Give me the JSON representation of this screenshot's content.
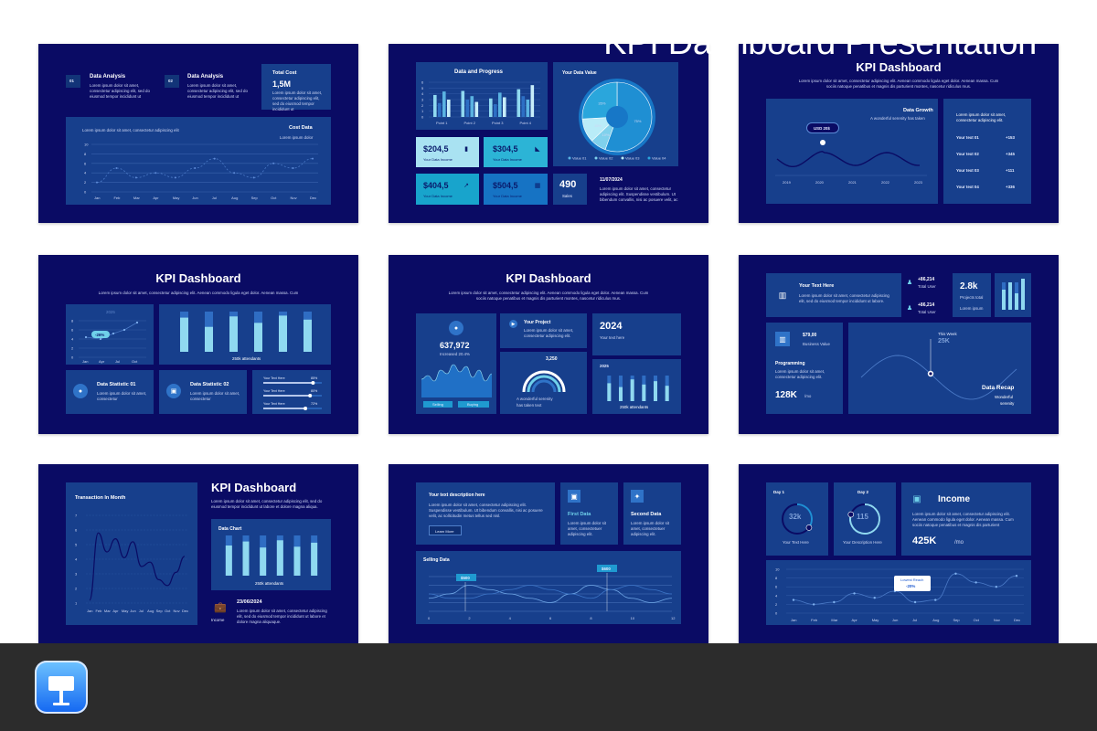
{
  "footer": {
    "title": "KPI Dashboard Presentation",
    "app_icon": "keynote-icon"
  },
  "lorem": {
    "short": "Lorem ipsum dolor sit amet, consectetur adipiscing elit, sed do eiusmod tempor incididunt ut",
    "line": "Lorem ipsum dolor sit amet, consectetur adipiscing elit. Aenean commodo ligula eget dolor. Aenean massa. Cum",
    "line2": "sociis natoque penatibus et magnis dis parturient montes, nascetur ridiculus mus.",
    "tiny": "Lorem ipsum dolor sit amet, consectetur adipiscing elit"
  },
  "slides": {
    "s1": {
      "item1_num": "01",
      "item1_title": "Data Analysis",
      "item2_num": "02",
      "item2_title": "Data Analysis",
      "total_label": "Total Cost",
      "total_value": "1,5M",
      "chart_title": "Cost Data",
      "chart_sub": "Lorem ipsum dolor",
      "chart_desc": "Lorem ipsum dolor sit amet, consectetur adipiscing elit",
      "yticks": [
        "10",
        "8",
        "6",
        "4",
        "2",
        "0"
      ],
      "months": [
        "Jan",
        "Feb",
        "Mar",
        "Apr",
        "May",
        "Jun",
        "Jul",
        "Aug",
        "Sep",
        "Oct",
        "Nov",
        "Dec"
      ]
    },
    "s2": {
      "chart_title": "Data and Progress",
      "yticks": [
        "6",
        "5",
        "4",
        "3",
        "2",
        "1",
        "0"
      ],
      "points": [
        "Point 1",
        "Point 2",
        "Point 3",
        "Point 4"
      ],
      "pie_title": "Your Data Value",
      "pie_labels": [
        "75%",
        "10%",
        "15%",
        "35%"
      ],
      "pie_legend": [
        "Value 01",
        "Value 02",
        "Value 03",
        "Value 04"
      ],
      "tiles": [
        {
          "value": "$204,5",
          "label": "Your Data Income"
        },
        {
          "value": "$304,5",
          "label": "Your Data Income"
        },
        {
          "value": "$404,5",
          "label": "Your Data Income"
        },
        {
          "value": "$504,5",
          "label": "Your Data Income"
        }
      ],
      "sales_value": "490",
      "sales_label": "Sales",
      "date": "11/07/2024",
      "date_text": "Lorem ipsum dolor sit amet, consectetur adipiscing elit. Suspendisse vestibulum. Ut bibendum convallis, nisi ac posuere velit, ac"
    },
    "s3": {
      "title": "KPI Dashboard",
      "usd": "USD 20$",
      "growth_title": "Data Growth",
      "growth_sub": "A wonderful serenity has taken",
      "years": [
        "2019",
        "2020",
        "2021",
        "2022",
        "2023"
      ],
      "right_text": "Lorem ipsum dolor sit amet, consectetur adipiscing elit.",
      "rows": [
        {
          "label": "Your text 01",
          "value": "+153"
        },
        {
          "label": "Your text 02",
          "value": "+345"
        },
        {
          "label": "Your text 03",
          "value": "+111"
        },
        {
          "label": "Your text 04",
          "value": "+336"
        }
      ]
    },
    "s4": {
      "title": "KPI Dashboard",
      "year": "2025",
      "badge": "-26%",
      "yticks": [
        "8",
        "6",
        "4",
        "2",
        "0"
      ],
      "months": [
        "Jan",
        "Apr",
        "Jul",
        "Oct"
      ],
      "bar_caption": "250k attendants",
      "stat1_title": "Data Statistic 01",
      "stat1_text": "Lorem ipsum dolor sit amet, consectetur",
      "stat2_title": "Data Statistic 02",
      "stat2_text": "Lorem ipsum dolor sit amet, consectetur",
      "sliders": [
        {
          "label": "Your Text Here",
          "value": "85%"
        },
        {
          "label": "Your Text Here",
          "value": "80%"
        },
        {
          "label": "Your Text Here",
          "value": "72%"
        }
      ]
    },
    "s5": {
      "title": "KPI Dashboard",
      "value": "637,972",
      "increased": "Increased 20.4%",
      "btn1": "Selling",
      "btn2": "Buying",
      "project_title": "Your Project",
      "project_text": "Lorem ipsum dolor sit amet, consectetur adipiscing elit.",
      "year": "2024",
      "year_text": "Your text here",
      "gauge_value": "3,250",
      "gauge_text1": "A wonderful serenity",
      "gauge_text2": "has taken text",
      "bar_year": "2025",
      "bar_caption": "250k attendants"
    },
    "s6": {
      "text_title": "Your Text Here",
      "text_body": "Lorem ipsum dolor sit amet, consectetur adipiscing elit, sed do eiusmod tempor incididunt ut labore.",
      "stat1_value": "+86,214",
      "stat1_label": "Total User",
      "stat2_value": "+86,214",
      "stat2_label": "Total User",
      "projects_value": "2.8k",
      "projects_label": "Projects total",
      "lorem_ipsum": "Lorem ipsum",
      "price": "$79,00",
      "price_label": "Business Value",
      "prog_title": "Programming",
      "prog_text": "Lorem ipsum dolor sit amet, consectetur adipiscing elit.",
      "prog_value": "128K",
      "prog_unit": "/mo",
      "week_label": "This Week",
      "week_value": "25K",
      "recap_title": "Data Recap",
      "recap_sub1": "Wonderful",
      "recap_sub2": "serenity"
    },
    "s7": {
      "chart_title": "Transaction In Month",
      "yticks": [
        "7",
        "6",
        "5",
        "4",
        "3",
        "2",
        "1"
      ],
      "months": [
        "Jan",
        "Feb",
        "Mar",
        "Apr",
        "May",
        "Jun",
        "Jul",
        "Aug",
        "Sep",
        "Oct",
        "Nov",
        "Dec"
      ],
      "title": "KPI Dashboard",
      "intro": "Lorem ipsum dolor sit amet, consectetur adipiscing elit, sed do eiusmod tempor incididunt ut labore et dolore magna aliqua.",
      "bar_title": "Data Chart",
      "bar_caption": "250k attendants",
      "date": "23/06/2024",
      "income_label": "Income",
      "date_text": "Lorem ipsum dolor sit amet, consectetur adipiscing elit, sed do eiusmod tempor incididunt ut labore et dolore magna aliquaque."
    },
    "s8": {
      "desc_title": "Your text description here",
      "desc_text": "Lorem ipsum dolor sit amet, consectetur adipiscing elit. Suspendisse vestibulum. Ut bibendum convallis, nisi ac posuere velit, ac sollicitudin metus tellus sed nisl.",
      "learn_more": "Learn More",
      "first_title": "First Data",
      "first_text": "Lorem ipsum dolor sit amet, consectetuer adipiscing elit.",
      "second_title": "Second Data",
      "second_text": "Lorem ipsum dolor sit amet, consectetuer adipiscing elit.",
      "chart_title": "Selling Data",
      "tag1": "$500",
      "tag2": "$600",
      "xticks": [
        "0",
        "2",
        "4",
        "6",
        "8",
        "10",
        "12"
      ]
    },
    "s9": {
      "day1_label": "Day 1",
      "day1_value": "32k",
      "day1_text": "Your Text Here",
      "day2_label": "Day 2",
      "day2_value": "115",
      "day2_text": "Your Description Here",
      "income_title": "Income",
      "income_text": "Lorem ipsum dolor sit amet, consectetur adipiscing elit. Aenean commodo ligula eget dolor. Aenean massa. Cum sociis natoque penatibus et magnis dis parturient",
      "income_value": "425K",
      "income_unit": "/mo",
      "yticks": [
        "10",
        "8",
        "6",
        "4",
        "2",
        "0"
      ],
      "months": [
        "Jan",
        "Feb",
        "Mar",
        "Apr",
        "May",
        "Jun",
        "Jul",
        "Aug",
        "Sep",
        "Oct",
        "Nov",
        "Dec"
      ],
      "callout_title": "Lowest Reach",
      "callout_value": "-20%"
    }
  },
  "chart_data": [
    {
      "type": "line",
      "title": "Cost Data",
      "categories": [
        "Jan",
        "Feb",
        "Mar",
        "Apr",
        "May",
        "Jun",
        "Jul",
        "Aug",
        "Sep",
        "Oct",
        "Nov",
        "Dec"
      ],
      "series": [
        {
          "values": [
            2,
            5,
            3,
            4,
            3,
            5,
            7,
            4,
            3,
            6,
            5,
            7
          ]
        }
      ],
      "ylim": [
        0,
        10
      ]
    },
    {
      "type": "bar",
      "title": "Data and Progress",
      "categories": [
        "Point 1",
        "Point 2",
        "Point 3",
        "Point 4"
      ],
      "series": [
        {
          "values": [
            3.8,
            4.5,
            3.2,
            4.8
          ]
        },
        {
          "values": [
            2.4,
            3.0,
            2.2,
            3.6
          ]
        },
        {
          "values": [
            4.4,
            3.6,
            4.2,
            3.0
          ]
        },
        {
          "values": [
            3.0,
            2.6,
            3.4,
            5.5
          ]
        }
      ],
      "ylim": [
        0,
        6
      ]
    },
    {
      "type": "pie",
      "title": "Your Data Value",
      "categories": [
        "Value 01",
        "Value 02",
        "Value 03",
        "Value 04"
      ],
      "values": [
        75,
        10,
        15,
        35
      ]
    },
    {
      "type": "bar",
      "categories": [
        "",
        "",
        "",
        "",
        "",
        ""
      ],
      "values": [
        85,
        62,
        88,
        72,
        90,
        80
      ],
      "caption": "250k attendants"
    },
    {
      "type": "bar",
      "categories": [
        "",
        "",
        "",
        "",
        "",
        ""
      ],
      "values": [
        70,
        55,
        85,
        65,
        78,
        60
      ],
      "caption": "250k attendants"
    },
    {
      "type": "bar",
      "categories": [
        "",
        "",
        "",
        "",
        "",
        ""
      ],
      "values": [
        75,
        85,
        70,
        88,
        72,
        82
      ],
      "caption": "250k attendants"
    },
    {
      "type": "line",
      "title": "Transaction In Month",
      "categories": [
        "Jan",
        "Feb",
        "Mar",
        "Apr",
        "May",
        "Jun",
        "Jul",
        "Aug",
        "Sep",
        "Oct",
        "Nov",
        "Dec"
      ],
      "series": [
        {
          "values": [
            1.2,
            5.8,
            4.5,
            5.4,
            4.1,
            5.2,
            3.5,
            3.8,
            2.6,
            2.2,
            3.1,
            4.2
          ]
        }
      ],
      "ylim": [
        1,
        7
      ]
    },
    {
      "type": "line",
      "title": "Selling Data",
      "x": [
        0,
        1,
        2,
        3,
        4,
        5,
        6,
        7,
        8,
        9,
        10,
        11,
        12
      ],
      "series": [
        {
          "values": [
            3,
            4,
            6,
            5,
            4,
            3,
            2,
            4,
            6,
            5,
            3,
            2,
            3
          ]
        },
        {
          "values": [
            4,
            3,
            3,
            4,
            5,
            6,
            5,
            4,
            3,
            5,
            6,
            5,
            4
          ]
        }
      ],
      "ylim": [
        0,
        8
      ]
    },
    {
      "type": "line",
      "categories": [
        "Jan",
        "Feb",
        "Mar",
        "Apr",
        "May",
        "Jun",
        "Jul",
        "Aug",
        "Sep",
        "Oct",
        "Nov",
        "Dec"
      ],
      "series": [
        {
          "values": [
            3,
            2,
            2.5,
            4.5,
            3.5,
            5,
            2.5,
            3,
            9,
            7,
            6,
            8.5
          ]
        }
      ],
      "ylim": [
        0,
        10
      ]
    }
  ]
}
